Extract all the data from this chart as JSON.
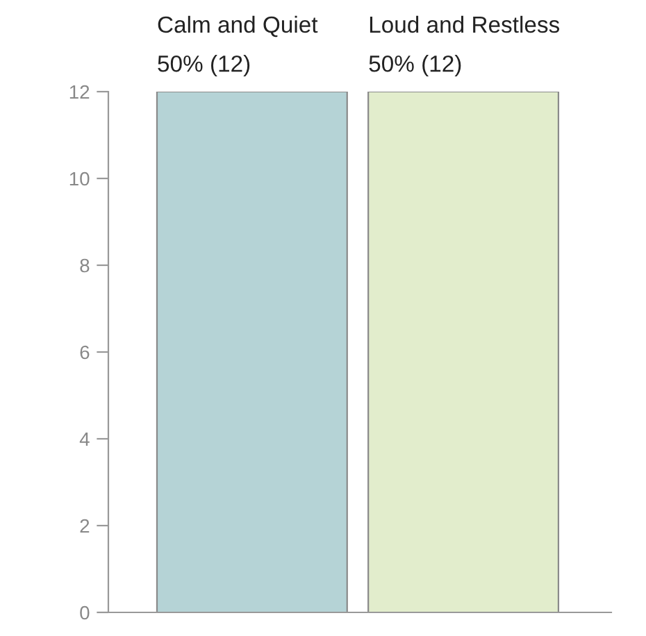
{
  "chart_data": {
    "type": "bar",
    "categories": [
      "Calm and Quiet",
      "Loud and Restless"
    ],
    "values": [
      12,
      12
    ],
    "value_labels": [
      "50% (12)",
      "50% (12)"
    ],
    "colors": [
      "#b5d3d6",
      "#e2edcc"
    ],
    "ylim": [
      0,
      12
    ],
    "yticks": [
      0,
      2,
      4,
      6,
      8,
      10,
      12
    ],
    "grid": false,
    "legend": false
  }
}
